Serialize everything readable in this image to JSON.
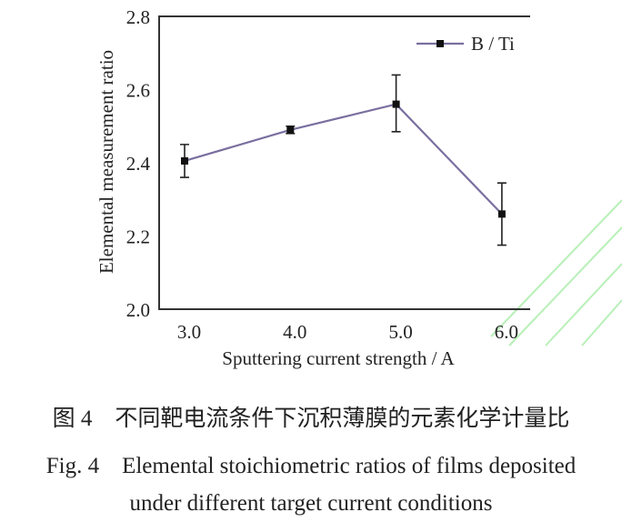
{
  "chart_data": {
    "type": "line",
    "xlabel": "Sputtering current strength / A",
    "ylabel": "Elemental measurement ratio",
    "x_ticks": [
      "3.0",
      "4.0",
      "5.0",
      "6.0"
    ],
    "y_ticks": [
      "2.0",
      "2.2",
      "2.4",
      "2.6",
      "2.8"
    ],
    "ylim": [
      2.0,
      2.8
    ],
    "xlim": [
      2.75,
      6.25
    ],
    "grid": false,
    "legend_position": "top-right",
    "series": [
      {
        "name": "B / Ti",
        "color": "#7a6fa0",
        "marker": "square",
        "x": [
          3.0,
          4.0,
          5.0,
          6.0
        ],
        "y": [
          2.405,
          2.49,
          2.56,
          2.26
        ],
        "err_low": [
          0.045,
          0.01,
          0.075,
          0.085
        ],
        "err_high": [
          0.045,
          0.01,
          0.08,
          0.085
        ]
      }
    ]
  },
  "caption": {
    "zh": "图 4　不同靶电流条件下沉积薄膜的元素化学计量比",
    "en_line1": "Fig. 4　Elemental stoichiometric ratios of films deposited",
    "en_line2": "under different target current conditions"
  }
}
